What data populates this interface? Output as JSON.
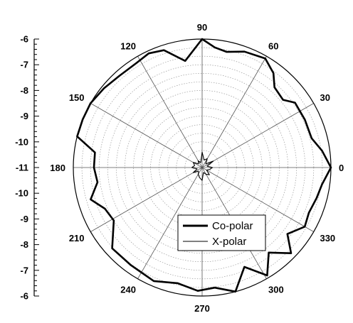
{
  "chart_data": {
    "type": "polar-line",
    "r_axis": {
      "ticks": [
        "-6",
        "-7",
        "-8",
        "-9",
        "-10",
        "-11",
        "-10",
        "-9",
        "-8",
        "-7",
        "-6"
      ],
      "min": -11,
      "max": -6,
      "minor_ticks_per_major": 4
    },
    "angle_axis": {
      "unit": "degrees",
      "labels": [
        "0",
        "30",
        "60",
        "90",
        "120",
        "150",
        "180",
        "210",
        "240",
        "270",
        "300",
        "330"
      ],
      "angles": [
        0,
        30,
        60,
        90,
        120,
        150,
        180,
        210,
        240,
        270,
        300,
        330
      ],
      "spoke_step_deg": 30,
      "grid_ring_steps": 15
    },
    "grid": true,
    "legend": {
      "position": "bottom-right",
      "entries": [
        "Co-polar",
        "X-polar"
      ]
    },
    "series": [
      {
        "name": "Co-polar",
        "color": "#000000",
        "line": "thick",
        "theta": [
          0,
          8,
          15,
          25,
          35,
          40,
          48,
          53,
          60,
          70,
          78,
          84,
          90,
          99,
          108,
          115,
          122,
          132,
          141,
          150,
          158,
          166,
          172,
          180,
          188,
          196,
          203,
          211,
          222,
          234,
          247,
          258,
          268,
          276,
          285,
          293,
          301,
          308,
          316,
          322,
          330,
          337,
          345,
          352
        ],
        "r": [
          -6.0,
          -6.3,
          -6.6,
          -6.6,
          -6.6,
          -6.9,
          -6.8,
          -6.4,
          -6.1,
          -6.2,
          -6.4,
          -6.3,
          -6.0,
          -6.8,
          -6.2,
          -6.1,
          -6.2,
          -6.2,
          -6.1,
          -6.0,
          -6.0,
          -6.0,
          -6.8,
          -6.8,
          -6.9,
          -6.5,
          -6.9,
          -7.0,
          -6.3,
          -6.3,
          -6.2,
          -6.4,
          -6.2,
          -6.3,
          -6.0,
          -6.8,
          -6.1,
          -6.8,
          -6.2,
          -6.8,
          -6.4,
          -6.5,
          -6.4,
          -6.3
        ]
      },
      {
        "name": "X-polar",
        "color": "#000000",
        "line": "thin",
        "theta": [
          0,
          15,
          30,
          45,
          60,
          75,
          90,
          105,
          120,
          135,
          150,
          165,
          180,
          195,
          210,
          225,
          240,
          255,
          270,
          285,
          300,
          315,
          330,
          345
        ],
        "r": [
          -10.6,
          -10.8,
          -10.5,
          -10.8,
          -10.6,
          -10.7,
          -10.4,
          -10.8,
          -10.7,
          -10.8,
          -10.6,
          -10.7,
          -10.6,
          -10.8,
          -10.6,
          -10.8,
          -10.7,
          -10.6,
          -10.5,
          -10.8,
          -10.7,
          -10.6,
          -10.8,
          -10.7
        ]
      }
    ]
  }
}
